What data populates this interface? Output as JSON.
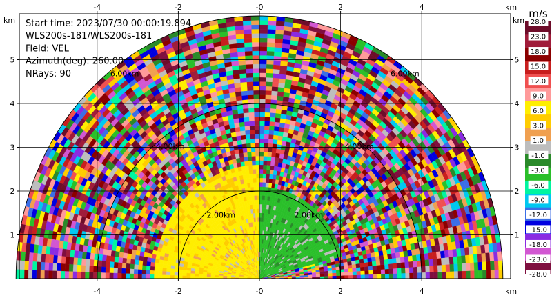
{
  "header": {
    "lines": [
      "Start time: 2023/07/30 00:00:19.894",
      "WLS200s-181/WLS200s-181",
      "Field: VEL",
      "Azimuth(deg): 260.00",
      "NRays: 90"
    ]
  },
  "chart_data": {
    "type": "heatmap",
    "projection": "polar-rhi-fan",
    "field": "VEL",
    "xlim": [
      -6,
      6
    ],
    "ylim": [
      0,
      6
    ],
    "x_unit": "km",
    "y_unit": "km",
    "x_ticks": [
      -4,
      -2,
      0,
      2,
      4
    ],
    "x_tick_labels": [
      "-4",
      "-2",
      "-0",
      "2",
      "4"
    ],
    "y_ticks": [
      1,
      2,
      3,
      4,
      5
    ],
    "y_tick_labels": [
      "1",
      "2",
      "3",
      "4",
      "5"
    ],
    "max_range_km": 6.0,
    "range_rings": [
      {
        "range": 2.0,
        "label": "2.00km"
      },
      {
        "range": 4.0,
        "label": "4.00km"
      },
      {
        "range": 6.0,
        "label": "6.00km"
      }
    ],
    "grid": true,
    "colorbar": {
      "unit": "m/s",
      "levels": [
        28.0,
        23.0,
        18.0,
        15.0,
        12.0,
        9.0,
        6.0,
        3.0,
        1.0,
        -1.0,
        -3.0,
        -6.0,
        -9.0,
        -12.0,
        -15.0,
        -18.0,
        -23.0,
        -28.0
      ],
      "labels": [
        "28.0",
        "23.0",
        "18.0",
        "15.0",
        "12.0",
        "9.0",
        "6.0",
        "3.0",
        "1.0",
        "-1.0",
        "-3.0",
        "-6.0",
        "-9.0",
        "-12.0",
        "-15.0",
        "-18.0",
        "-23.0",
        "-28.0"
      ],
      "colors": [
        "#6e0d2a",
        "#a01c3a",
        "#8b0000",
        "#c81e1e",
        "#f05050",
        "#ff9a9a",
        "#ffee00",
        "#ffcc00",
        "#f0a050",
        "#bdbdbd",
        "#2a8a2a",
        "#2abf2a",
        "#00f5a0",
        "#00c8f0",
        "#3c6ee6",
        "#0000e0",
        "#8a2be2",
        "#d257d2",
        "#7f0f3f"
      ]
    },
    "regions": [
      {
        "name": "near-left",
        "r_min": 0.0,
        "r_max": 2.6,
        "dominant_velocity": 6.0
      },
      {
        "name": "near-right",
        "r_min": 0.0,
        "r_max": 2.1,
        "dominant_velocity": -6.0
      }
    ]
  }
}
